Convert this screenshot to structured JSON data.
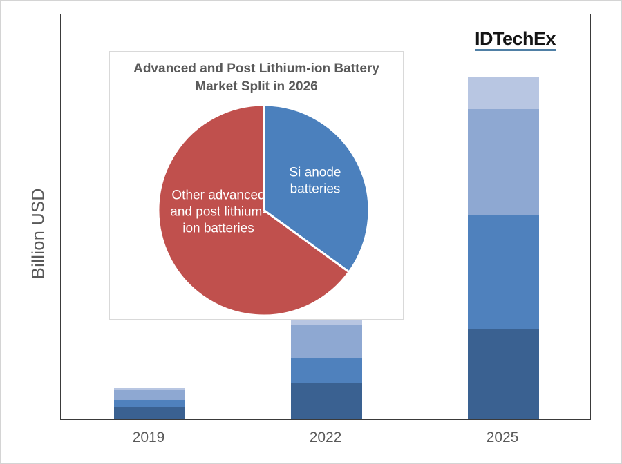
{
  "logo": {
    "text": "IDTechEx",
    "underline_color": "#4f7fa5"
  },
  "axis": {
    "y_label": "Billion USD"
  },
  "inset": {
    "title_line1": "Advanced and Post Lithium-ion Battery",
    "title_line2": "Market Split in 2026"
  },
  "chart_data": [
    {
      "type": "bar",
      "stacked": true,
      "title": "",
      "xlabel": "",
      "ylabel": "Billion USD",
      "categories": [
        "2019",
        "2022",
        "2025"
      ],
      "series": [
        {
          "name": "segment-dark-blue (bottom)",
          "color": "#3a6191",
          "values_pct_of_plot_height": [
            3.1,
            9.0,
            22.4
          ]
        },
        {
          "name": "segment-medium-blue",
          "color": "#4f81bd",
          "values_pct_of_plot_height": [
            1.7,
            6.0,
            28.2
          ]
        },
        {
          "name": "segment-light-blue",
          "color": "#8ea8d2",
          "values_pct_of_plot_height": [
            2.4,
            8.3,
            26.0
          ]
        },
        {
          "name": "segment-pale-blue (top)",
          "color": "#b8c6e2",
          "values_pct_of_plot_height": [
            0.4,
            1.2,
            8.0
          ]
        }
      ],
      "totals_pct_of_plot_height": [
        7.6,
        24.5,
        84.6
      ],
      "grid": false,
      "legend": false,
      "note": "y-axis has no tick labels; segment values are bar heights as % of plot height"
    },
    {
      "type": "pie",
      "title": "Advanced and Post Lithium-ion Battery Market Split in 2026",
      "legend": false,
      "slices": [
        {
          "label": "Si anode batteries",
          "color": "#4b80bd",
          "value_pct": 35
        },
        {
          "label": "Other advanced and post lithium-ion batteries",
          "color": "#c0504d",
          "value_pct": 65
        }
      ],
      "start_angle_deg_from_top": 0,
      "separator_color": "#ffffff"
    }
  ]
}
